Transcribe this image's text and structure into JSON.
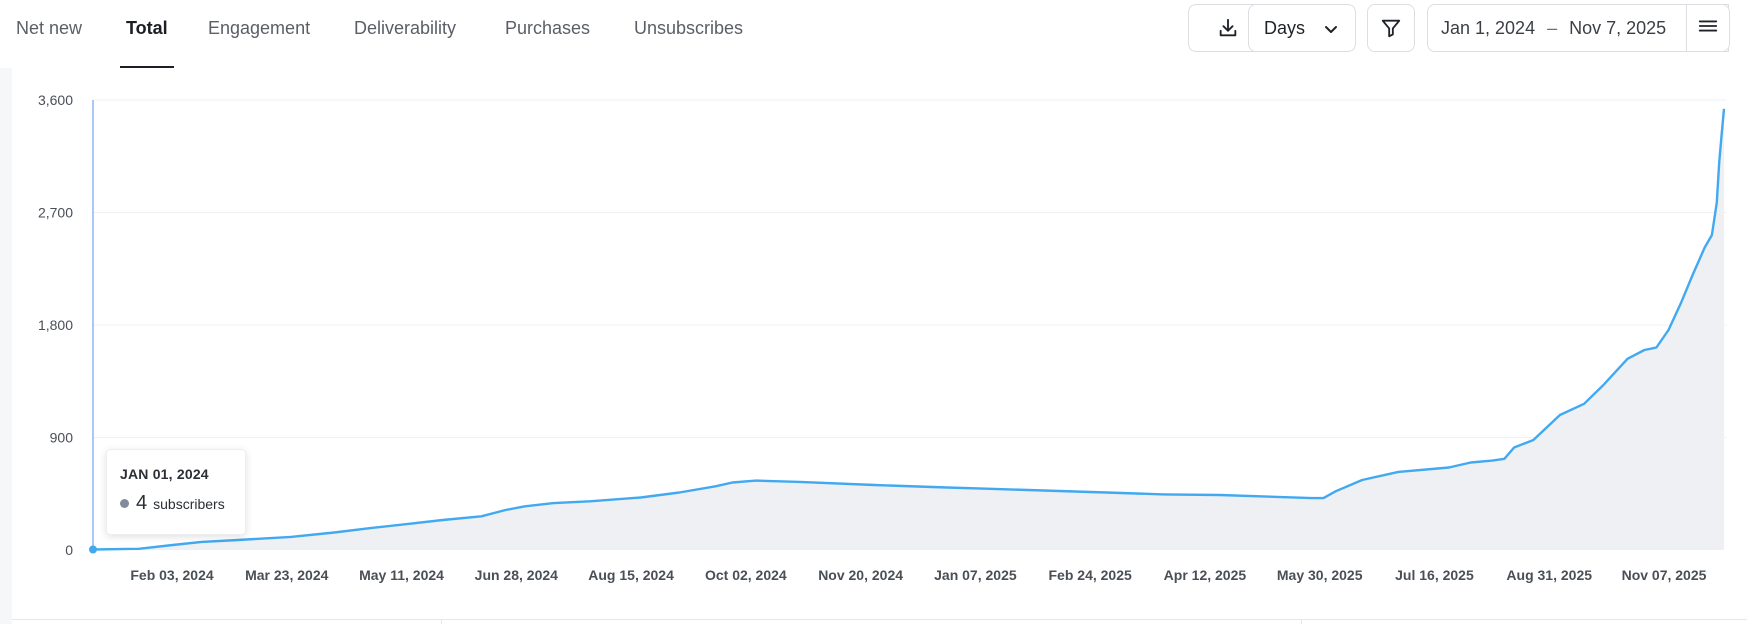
{
  "tabs": [
    {
      "label": "Net new",
      "active": false
    },
    {
      "label": "Total",
      "active": true
    },
    {
      "label": "Engagement",
      "active": false
    },
    {
      "label": "Deliverability",
      "active": false
    },
    {
      "label": "Purchases",
      "active": false
    },
    {
      "label": "Unsubscribes",
      "active": false
    }
  ],
  "toolbar": {
    "download_icon": "download-icon",
    "granularity_label": "Days",
    "granularity_icon": "chevron-down-icon",
    "filter_icon": "filter-icon",
    "date_start": "Jan 1, 2024",
    "date_separator": "–",
    "date_end": "Nov 7, 2025",
    "menu_icon": "hamburger-menu-icon"
  },
  "tooltip": {
    "date": "JAN 01, 2024",
    "value": "4",
    "unit": "subscribers",
    "dot_color": "#7f8b9e"
  },
  "colors": {
    "line": "#42a9f0",
    "area": "#eef0f4",
    "cursor_line": "#8fb4f5"
  },
  "chart_data": {
    "type": "area",
    "title": "",
    "xlabel": "",
    "ylabel": "",
    "ylim": [
      0,
      3600
    ],
    "yticks": [
      0,
      900,
      1800,
      2700,
      3600
    ],
    "ytick_labels": [
      "0",
      "900",
      "1,800",
      "2,700",
      "3,600"
    ],
    "xtick_labels": [
      "Feb 03, 2024",
      "Mar 23, 2024",
      "May 11, 2024",
      "Jun 28, 2024",
      "Aug 15, 2024",
      "Oct 02, 2024",
      "Nov 20, 2024",
      "Jan 07, 2025",
      "Feb 24, 2025",
      "Apr 12, 2025",
      "May 30, 2025",
      "Jul 16, 2025",
      "Aug 31, 2025",
      "Nov 07, 2025"
    ],
    "xlim": [
      "2024-01-01",
      "2025-11-07"
    ],
    "grid": true,
    "series": [
      {
        "points": [
          [
            "2024-01-01",
            4
          ],
          [
            "2024-01-20",
            10
          ],
          [
            "2024-02-03",
            40
          ],
          [
            "2024-02-15",
            65
          ],
          [
            "2024-03-01",
            80
          ],
          [
            "2024-03-23",
            105
          ],
          [
            "2024-04-10",
            140
          ],
          [
            "2024-04-25",
            175
          ],
          [
            "2024-05-11",
            210
          ],
          [
            "2024-05-25",
            240
          ],
          [
            "2024-06-10",
            270
          ],
          [
            "2024-06-20",
            320
          ],
          [
            "2024-06-28",
            350
          ],
          [
            "2024-07-10",
            375
          ],
          [
            "2024-07-25",
            390
          ],
          [
            "2024-08-15",
            420
          ],
          [
            "2024-08-31",
            460
          ],
          [
            "2024-09-15",
            510
          ],
          [
            "2024-09-22",
            540
          ],
          [
            "2024-09-28",
            550
          ],
          [
            "2024-10-02",
            555
          ],
          [
            "2024-10-20",
            545
          ],
          [
            "2024-11-20",
            520
          ],
          [
            "2024-12-20",
            500
          ],
          [
            "2025-01-07",
            490
          ],
          [
            "2025-02-24",
            460
          ],
          [
            "2025-03-20",
            445
          ],
          [
            "2025-04-12",
            440
          ],
          [
            "2025-05-20",
            415
          ],
          [
            "2025-05-25",
            415
          ],
          [
            "2025-05-30",
            470
          ],
          [
            "2025-06-10",
            560
          ],
          [
            "2025-06-25",
            625
          ],
          [
            "2025-07-16",
            660
          ],
          [
            "2025-07-25",
            700
          ],
          [
            "2025-08-03",
            715
          ],
          [
            "2025-08-08",
            730
          ],
          [
            "2025-08-12",
            820
          ],
          [
            "2025-08-20",
            880
          ],
          [
            "2025-08-31",
            1080
          ],
          [
            "2025-09-10",
            1170
          ],
          [
            "2025-09-18",
            1320
          ],
          [
            "2025-09-28",
            1530
          ],
          [
            "2025-10-05",
            1600
          ],
          [
            "2025-10-10",
            1620
          ],
          [
            "2025-10-15",
            1760
          ],
          [
            "2025-10-20",
            1970
          ],
          [
            "2025-10-25",
            2200
          ],
          [
            "2025-10-30",
            2420
          ],
          [
            "2025-11-02",
            2520
          ],
          [
            "2025-11-04",
            2780
          ],
          [
            "2025-11-05",
            3100
          ],
          [
            "2025-11-06",
            3320
          ],
          [
            "2025-11-07",
            3530
          ]
        ]
      }
    ]
  }
}
